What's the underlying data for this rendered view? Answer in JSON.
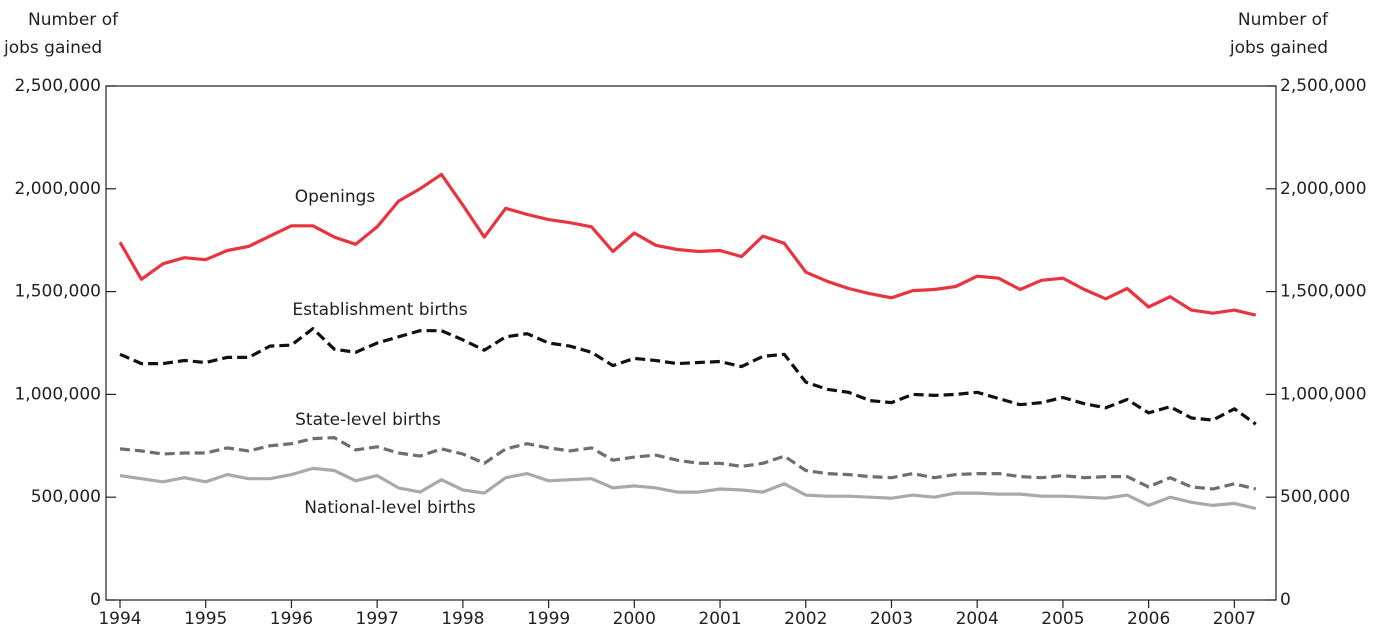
{
  "chart_data": {
    "type": "line",
    "ylabel": [
      "Number of",
      "jobs gained"
    ],
    "y2label": [
      "Number of",
      "jobs gained"
    ],
    "categories": [
      "1994",
      null,
      null,
      null,
      "1995",
      null,
      null,
      null,
      "1996",
      null,
      null,
      null,
      "1997",
      null,
      null,
      null,
      "1998",
      null,
      null,
      null,
      "1999",
      null,
      null,
      null,
      "2000",
      null,
      null,
      null,
      "2001",
      null,
      null,
      null,
      "2002",
      null,
      null,
      null,
      "2003",
      null,
      null,
      null,
      "2004",
      null,
      null,
      null,
      "2005",
      null,
      null,
      null,
      "2006",
      null,
      null,
      null,
      "2007",
      null
    ],
    "ylim": [
      0,
      2500000
    ],
    "yticks": [
      0,
      {
        "value": 500000,
        "label": "500,000"
      },
      {
        "value": 1000000,
        "label": "1,000,000"
      },
      {
        "value": 1500000,
        "label": "1,500,000"
      },
      {
        "value": 2000000,
        "label": "2,000,000"
      },
      {
        "value": 2500000,
        "label": "2,500,000"
      }
    ],
    "y2lim": [
      0,
      2500000
    ],
    "y2ticks": [
      0,
      {
        "value": 500000,
        "label": "500,000"
      },
      {
        "value": 1000000,
        "label": "1,000,000"
      },
      {
        "value": 1500000,
        "label": "1,500,000"
      },
      {
        "value": 2000000,
        "label": "2,000,000"
      },
      {
        "value": 2500000,
        "label": "2,500,000"
      }
    ],
    "series": [
      {
        "name": "Openings",
        "color": "#e8343f",
        "dashed": false,
        "values": [
          1740000,
          1560000,
          1635000,
          1665000,
          1655000,
          1700000,
          1720000,
          1770000,
          1820000,
          1820000,
          1765000,
          1730000,
          1815000,
          1940000,
          2000000,
          2070000,
          1920000,
          1765000,
          1905000,
          1875000,
          1850000,
          1835000,
          1815000,
          1695000,
          1785000,
          1725000,
          1705000,
          1695000,
          1700000,
          1670000,
          1770000,
          1735000,
          1595000,
          1550000,
          1515000,
          1490000,
          1470000,
          1505000,
          1510000,
          1525000,
          1575000,
          1565000,
          1510000,
          1555000,
          1565000,
          1510000,
          1465000,
          1515000,
          1425000,
          1475000,
          1410000,
          1395000,
          1410000,
          1385000
        ]
      },
      {
        "name": "Establishment births",
        "color": "#111111",
        "dashed": true,
        "values": [
          1195000,
          1150000,
          1150000,
          1165000,
          1155000,
          1180000,
          1180000,
          1235000,
          1240000,
          1320000,
          1220000,
          1205000,
          1250000,
          1280000,
          1310000,
          1310000,
          1265000,
          1215000,
          1280000,
          1295000,
          1250000,
          1235000,
          1205000,
          1140000,
          1175000,
          1165000,
          1150000,
          1155000,
          1160000,
          1135000,
          1185000,
          1195000,
          1060000,
          1025000,
          1010000,
          970000,
          960000,
          1000000,
          995000,
          1000000,
          1010000,
          980000,
          950000,
          960000,
          985000,
          955000,
          935000,
          975000,
          910000,
          940000,
          885000,
          875000,
          930000,
          855000
        ]
      },
      {
        "name": "State-level births",
        "color": "#6d6e71",
        "dashed": true,
        "values": [
          735000,
          725000,
          710000,
          715000,
          715000,
          740000,
          725000,
          750000,
          760000,
          785000,
          790000,
          730000,
          745000,
          715000,
          700000,
          735000,
          710000,
          665000,
          735000,
          760000,
          740000,
          725000,
          740000,
          680000,
          695000,
          705000,
          680000,
          665000,
          665000,
          650000,
          665000,
          700000,
          630000,
          615000,
          610000,
          600000,
          595000,
          615000,
          595000,
          610000,
          615000,
          615000,
          600000,
          595000,
          605000,
          595000,
          600000,
          600000,
          550000,
          595000,
          550000,
          540000,
          565000,
          540000
        ]
      },
      {
        "name": "National-level births",
        "color": "#a7a9ac",
        "dashed": false,
        "values": [
          605000,
          590000,
          575000,
          595000,
          575000,
          610000,
          590000,
          590000,
          610000,
          640000,
          630000,
          580000,
          605000,
          545000,
          525000,
          585000,
          535000,
          520000,
          595000,
          615000,
          580000,
          585000,
          590000,
          545000,
          555000,
          545000,
          525000,
          525000,
          540000,
          535000,
          525000,
          565000,
          510000,
          505000,
          505000,
          500000,
          495000,
          510000,
          500000,
          520000,
          520000,
          515000,
          515000,
          505000,
          505000,
          500000,
          495000,
          510000,
          460000,
          500000,
          475000,
          460000,
          470000,
          445000
        ]
      }
    ]
  }
}
